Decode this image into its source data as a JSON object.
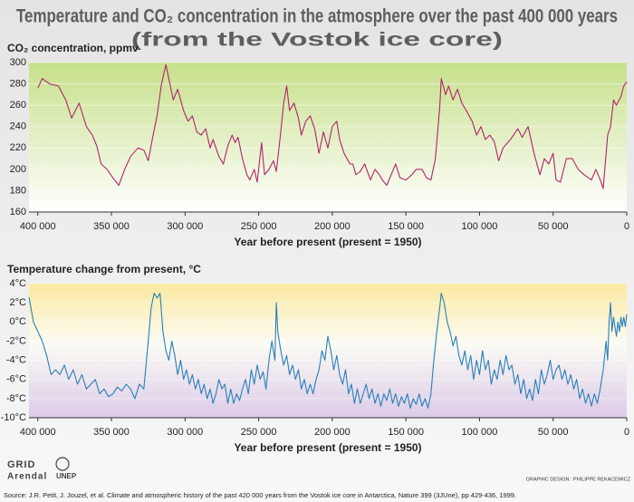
{
  "title": [
    "Temperature and CO₂ concentration in the atmosphere over the past 400 000 years",
    "(from the Vostok ice core)"
  ],
  "logos": [
    "GRID",
    "Arendal",
    "UNEP"
  ],
  "credit": "GRAPHIC DESIGN : PHILIPPE REKACEWICZ",
  "source": "Source: J.R. Petit, J. Jouzel, et al. Climate and atmospheric history of the past 420 000 years from the Vostok ice core in Antarctica, Nature 399 (3JUne), pp 429-436, 1999.",
  "chart_data": [
    {
      "type": "line",
      "y_label": "CO₂ concentration, ppmv",
      "x_label": "Year before present (present = 1950)",
      "color": "#b0246a",
      "grid": true,
      "xlim": [
        406000,
        0
      ],
      "xticks": [
        {
          "value": 400000,
          "label": "400 000"
        },
        {
          "value": 350000,
          "label": "350 000"
        },
        {
          "value": 300000,
          "label": "300 000"
        },
        {
          "value": 250000,
          "label": "250 000"
        },
        {
          "value": 200000,
          "label": "200 000"
        },
        {
          "value": 150000,
          "label": "150 000"
        },
        {
          "value": 100000,
          "label": "100 000"
        },
        {
          "value": 50000,
          "label": "50 000"
        },
        0
      ],
      "ylim": [
        160,
        300
      ],
      "yticks": [
        160,
        180,
        200,
        220,
        240,
        260,
        280,
        300
      ],
      "x": [
        400000,
        397000,
        392000,
        386000,
        381000,
        377000,
        372000,
        367000,
        363000,
        360000,
        357000,
        353000,
        349000,
        345000,
        341000,
        337000,
        332000,
        328000,
        325000,
        322000,
        319000,
        316000,
        313000,
        311000,
        308000,
        305000,
        303000,
        301000,
        298000,
        295000,
        292000,
        289000,
        286000,
        283000,
        281000,
        277000,
        274000,
        271000,
        268000,
        266000,
        264000,
        261000,
        258000,
        256000,
        253000,
        251000,
        248000,
        246000,
        243000,
        240000,
        238000,
        235000,
        233000,
        231000,
        229000,
        226000,
        223000,
        221000,
        218000,
        215000,
        212000,
        209000,
        206000,
        203000,
        200000,
        197000,
        195000,
        192000,
        188000,
        186000,
        184000,
        181000,
        178000,
        174000,
        171000,
        168000,
        166000,
        163000,
        160000,
        157000,
        154000,
        150000,
        146000,
        143000,
        139000,
        136000,
        133000,
        130000,
        127000,
        126000,
        123000,
        121000,
        118000,
        115000,
        112000,
        109000,
        105000,
        102000,
        99000,
        96000,
        93000,
        90000,
        87000,
        84000,
        79000,
        74000,
        71000,
        67000,
        63000,
        59000,
        56000,
        53000,
        50000,
        48000,
        45000,
        41000,
        37000,
        33000,
        29000,
        24000,
        21000,
        18000,
        16000,
        13000,
        11000,
        9000,
        7000,
        4000,
        2000,
        0
      ],
      "values": [
        276,
        285,
        280,
        278,
        265,
        248,
        262,
        240,
        232,
        222,
        205,
        200,
        192,
        185,
        200,
        212,
        220,
        218,
        208,
        230,
        250,
        280,
        298,
        285,
        265,
        275,
        265,
        255,
        245,
        250,
        235,
        232,
        238,
        220,
        228,
        212,
        205,
        222,
        232,
        225,
        230,
        210,
        195,
        190,
        200,
        188,
        225,
        195,
        200,
        208,
        198,
        235,
        262,
        278,
        255,
        262,
        248,
        232,
        245,
        250,
        238,
        215,
        235,
        220,
        240,
        245,
        228,
        215,
        205,
        205,
        195,
        198,
        205,
        190,
        200,
        195,
        190,
        185,
        195,
        205,
        192,
        190,
        195,
        200,
        200,
        192,
        190,
        210,
        258,
        285,
        270,
        278,
        265,
        275,
        262,
        255,
        245,
        232,
        240,
        228,
        232,
        226,
        208,
        220,
        228,
        238,
        230,
        240,
        215,
        195,
        210,
        205,
        215,
        190,
        188,
        210,
        210,
        200,
        195,
        190,
        200,
        190,
        182,
        232,
        240,
        265,
        260,
        268,
        278,
        282
      ]
    },
    {
      "type": "line",
      "y_label": "Temperature change from present, °C",
      "x_label": "Year before present (present = 1950)",
      "color": "#2a7fb8",
      "grid": true,
      "xlim": [
        406000,
        0
      ],
      "xticks": [
        {
          "value": 400000,
          "label": "400 000"
        },
        {
          "value": 350000,
          "label": "350 000"
        },
        {
          "value": 300000,
          "label": "300 000"
        },
        {
          "value": 250000,
          "label": "250 000"
        },
        {
          "value": 200000,
          "label": "200 000"
        },
        {
          "value": 150000,
          "label": "150 000"
        },
        {
          "value": 100000,
          "label": "100 000"
        },
        {
          "value": 50000,
          "label": "50 000"
        },
        0
      ],
      "ylim": [
        -10,
        4
      ],
      "yticks": [
        {
          "value": 4,
          "label": "4°C"
        },
        {
          "value": 2,
          "label": "2°C"
        },
        {
          "value": 0,
          "label": "0°C"
        },
        {
          "value": -2,
          "label": "-2°C"
        },
        {
          "value": -4,
          "label": "-4°C"
        },
        {
          "value": -6,
          "label": "-6°C"
        },
        {
          "value": -8,
          "label": "-8°C"
        },
        {
          "value": -10,
          "label": "-10°C"
        }
      ],
      "x": [
        406000,
        403000,
        400000,
        397000,
        394000,
        391000,
        388000,
        385000,
        382000,
        379000,
        376000,
        373000,
        370000,
        367000,
        364000,
        361000,
        358000,
        355000,
        352000,
        349000,
        346000,
        343000,
        340000,
        337000,
        334000,
        331000,
        328000,
        325000,
        323000,
        321000,
        319000,
        317000,
        315000,
        313000,
        311000,
        309000,
        307000,
        305000,
        303000,
        301000,
        299000,
        297000,
        295000,
        293000,
        291000,
        289000,
        287000,
        285000,
        283000,
        281000,
        279000,
        277000,
        275000,
        273000,
        271000,
        269000,
        267000,
        265000,
        263000,
        261000,
        259000,
        257000,
        255000,
        253000,
        251000,
        249000,
        247000,
        245000,
        243000,
        241000,
        239000,
        238000,
        237000,
        235000,
        233000,
        231000,
        229000,
        227000,
        225000,
        223000,
        221000,
        219000,
        217000,
        215000,
        213000,
        211000,
        209000,
        207000,
        205000,
        203000,
        201000,
        199000,
        197000,
        195000,
        193000,
        191000,
        189000,
        187000,
        185000,
        183000,
        181000,
        179000,
        177000,
        175000,
        173000,
        171000,
        169000,
        167000,
        165000,
        163000,
        161000,
        159000,
        157000,
        155000,
        153000,
        151000,
        149000,
        147000,
        145000,
        143000,
        141000,
        139000,
        137000,
        135000,
        133000,
        131000,
        129000,
        127000,
        126000,
        124000,
        122000,
        120000,
        118000,
        116000,
        114000,
        112000,
        110000,
        108000,
        106000,
        104000,
        102000,
        100000,
        98000,
        96000,
        94000,
        92000,
        90000,
        88000,
        86000,
        84000,
        82000,
        80000,
        78000,
        76000,
        74000,
        72000,
        70000,
        68000,
        66000,
        64000,
        62000,
        60000,
        58000,
        56000,
        54000,
        52000,
        50000,
        48000,
        46000,
        44000,
        42000,
        40000,
        38000,
        36000,
        34000,
        32000,
        30000,
        28000,
        26000,
        24000,
        22000,
        20000,
        18000,
        16000,
        14000,
        13000,
        12000,
        11000,
        10000,
        9000,
        8000,
        7000,
        6000,
        5000,
        4000,
        3000,
        2000,
        1000,
        0
      ],
      "values": [
        2.6,
        0,
        -1,
        -2,
        -3.5,
        -5.5,
        -5,
        -5.5,
        -4.5,
        -6,
        -5,
        -6.5,
        -5.5,
        -7,
        -6.5,
        -6,
        -7.5,
        -7,
        -7.8,
        -7.5,
        -6.8,
        -7.2,
        -6.5,
        -7,
        -8,
        -6.5,
        -7,
        -2,
        1.5,
        3,
        2.5,
        3,
        -1,
        -3,
        -4,
        -2,
        -3.5,
        -5.5,
        -4,
        -6,
        -5,
        -6.5,
        -5.5,
        -7,
        -6,
        -7.5,
        -6.5,
        -8,
        -7,
        -8.5,
        -7.5,
        -6,
        -7,
        -6.5,
        -8.5,
        -7,
        -8.5,
        -7.5,
        -8.2,
        -7,
        -6,
        -7.5,
        -5,
        -6.5,
        -4.5,
        -6,
        -5.2,
        -7,
        -4,
        -2,
        -4,
        2,
        -1,
        -3,
        -4.5,
        -3.5,
        -5.5,
        -4.5,
        -6,
        -5,
        -7,
        -6,
        -7.5,
        -6.5,
        -7.5,
        -6,
        -5,
        -3,
        -4,
        -1.5,
        -3,
        -5,
        -3.5,
        -5.5,
        -6.5,
        -5,
        -7.5,
        -6.5,
        -8.5,
        -7,
        -8.5,
        -7.5,
        -6.5,
        -8,
        -7,
        -8.5,
        -7.5,
        -8.8,
        -7.5,
        -8.2,
        -7,
        -8.5,
        -7.5,
        -8.8,
        -7.8,
        -8.5,
        -7.5,
        -9,
        -8,
        -8.6,
        -7.5,
        -8.8,
        -8,
        -9,
        -7.5,
        -4,
        -1,
        1.5,
        3,
        2,
        0,
        -1,
        -2.5,
        -1.5,
        -3.5,
        -4.5,
        -3,
        -5,
        -3.5,
        -6,
        -4,
        -5.5,
        -3,
        -5,
        -4,
        -6.5,
        -5,
        -6,
        -4,
        -5.5,
        -3.5,
        -5,
        -4.5,
        -6.5,
        -5.5,
        -7.5,
        -6,
        -8,
        -7,
        -8.2,
        -6,
        -7.5,
        -5,
        -6.5,
        -5.5,
        -4,
        -6,
        -5,
        -4.5,
        -6,
        -5,
        -6.5,
        -5.5,
        -7,
        -6,
        -8,
        -7,
        -8.5,
        -7.5,
        -8.8,
        -7.5,
        -8.5,
        -7,
        -5,
        -2,
        -4,
        0,
        2,
        -1,
        0.5,
        -0.5,
        -1.5,
        0,
        -1,
        0.5,
        -0.5,
        0.5,
        -0.5,
        0.8
      ]
    }
  ]
}
